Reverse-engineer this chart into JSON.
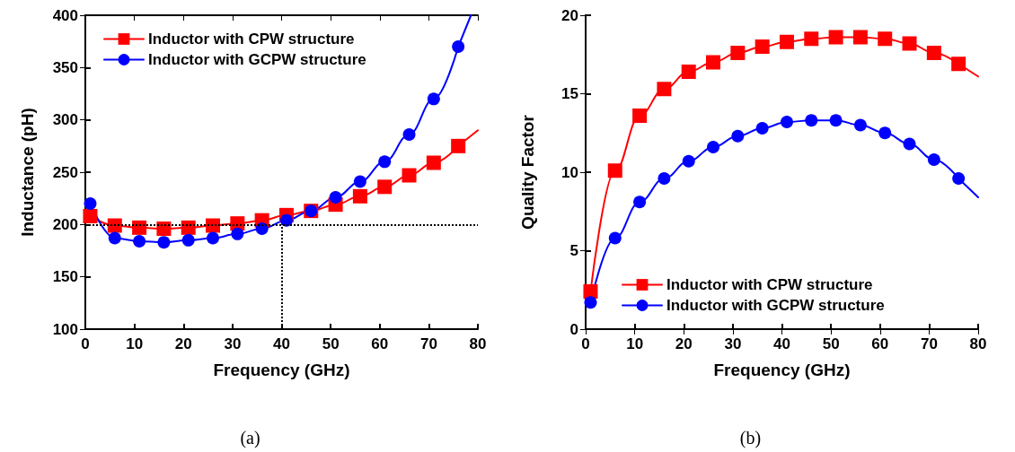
{
  "chart_data": [
    {
      "type": "line",
      "xlabel": "Frequency (GHz)",
      "ylabel": "Inductance (pH)",
      "xlim": [
        0,
        80
      ],
      "xticks": [
        0,
        10,
        20,
        30,
        40,
        50,
        60,
        70,
        80
      ],
      "ylim": [
        100,
        400
      ],
      "yticks": [
        100,
        150,
        200,
        250,
        300,
        350,
        400
      ],
      "grid": false,
      "legend": "top left",
      "line_style": "solid",
      "annotations": [
        "(a)"
      ],
      "ref_lines": [
        {
          "axis": "y",
          "value": 200,
          "line_style": "dotted",
          "color": "#000000"
        },
        {
          "axis": "x",
          "value": 40,
          "line_style": "dotted",
          "color": "#000000"
        }
      ],
      "series": [
        {
          "name": "Inductor with CPW structure",
          "color": "#ff0000",
          "marker": "square",
          "x": [
            1,
            6,
            11,
            16,
            21,
            26,
            31,
            36,
            41,
            46,
            51,
            56,
            61,
            66,
            71,
            76
          ],
          "values": [
            208,
            199,
            197,
            196,
            197,
            199,
            201,
            204,
            209,
            213,
            219,
            227,
            236,
            247,
            259,
            275
          ]
        },
        {
          "name": "Inductor with GCPW structure",
          "color": "#0000ff",
          "marker": "circle",
          "x": [
            1,
            6,
            11,
            16,
            21,
            26,
            31,
            36,
            41,
            46,
            51,
            56,
            61,
            66,
            71,
            76
          ],
          "values": [
            220,
            187,
            184,
            183,
            185,
            187,
            191,
            196,
            204,
            213,
            226,
            241,
            260,
            286,
            320,
            370
          ]
        },
        {
          "type": "line",
          "color": "#ff0000",
          "marker": "none",
          "x": [
            76,
            80
          ],
          "values": [
            275,
            290
          ]
        },
        {
          "type": "line",
          "color": "#0000ff",
          "marker": "none",
          "x": [
            76,
            78.6
          ],
          "values": [
            370,
            400
          ]
        }
      ]
    },
    {
      "type": "line",
      "xlabel": "Frequency (GHz)",
      "ylabel": "Quality Factor",
      "xlim": [
        0,
        80
      ],
      "xticks": [
        0,
        10,
        20,
        30,
        40,
        50,
        60,
        70,
        80
      ],
      "ylim": [
        0,
        20
      ],
      "yticks": [
        0,
        5,
        10,
        15,
        20
      ],
      "grid": false,
      "legend": "bottom",
      "line_style": "solid",
      "annotations": [
        "(b)"
      ],
      "series": [
        {
          "name": "Inductor with CPW structure",
          "color": "#ff0000",
          "marker": "square",
          "x": [
            1,
            6,
            11,
            16,
            21,
            26,
            31,
            36,
            41,
            46,
            51,
            56,
            61,
            66,
            71,
            76
          ],
          "values": [
            2.4,
            10.1,
            13.6,
            15.3,
            16.4,
            17.0,
            17.6,
            18.0,
            18.3,
            18.5,
            18.6,
            18.6,
            18.5,
            18.2,
            17.6,
            16.9
          ]
        },
        {
          "name": "Inductor with GCPW structure",
          "color": "#0000ff",
          "marker": "circle",
          "x": [
            1,
            6,
            11,
            16,
            21,
            26,
            31,
            36,
            41,
            46,
            51,
            56,
            61,
            66,
            71,
            76
          ],
          "values": [
            1.7,
            5.8,
            8.1,
            9.6,
            10.7,
            11.6,
            12.3,
            12.8,
            13.2,
            13.3,
            13.3,
            13.0,
            12.5,
            11.8,
            10.8,
            9.6
          ]
        },
        {
          "type": "line",
          "color": "#ff0000",
          "marker": "none",
          "x": [
            76,
            80
          ],
          "values": [
            16.9,
            16.1
          ]
        },
        {
          "type": "line",
          "color": "#0000ff",
          "marker": "none",
          "x": [
            76,
            80
          ],
          "values": [
            9.6,
            8.4
          ]
        }
      ]
    }
  ]
}
